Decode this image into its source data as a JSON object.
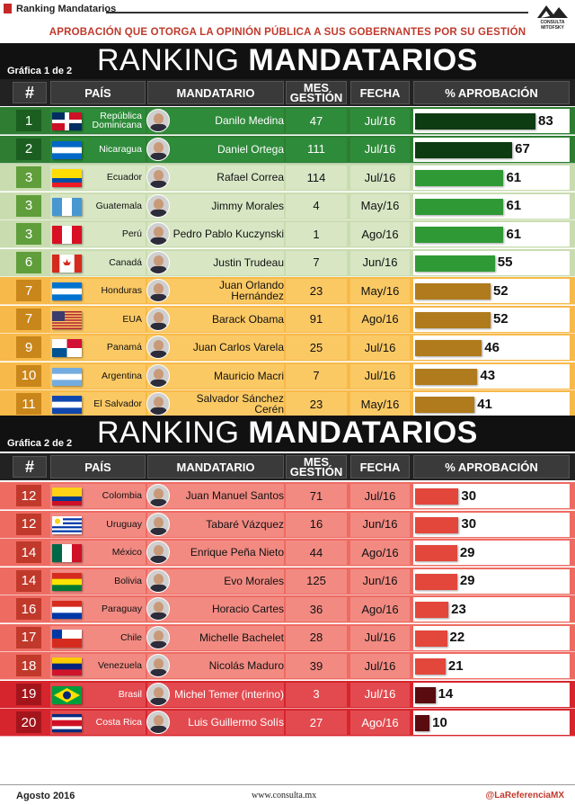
{
  "header": {
    "doc_title": "Ranking Mandatarios",
    "subtitle": "APROBACIÓN QUE OTORGA LA OPINIÓN PÚBLICA A SUS GOBERNANTES POR SU GESTIÓN",
    "logo_text": "CONSULTA MITOFSKY"
  },
  "columns": {
    "rank": "#",
    "country": "PAÍS",
    "leader": "MANDATARIO",
    "months": "MES GESTIÓN",
    "date": "FECHA",
    "approval": "% APROBACIÓN"
  },
  "sections": [
    {
      "label": "Gráfica 1 de 2",
      "title_light": "RANKING",
      "title_bold": "MANDATARIOS",
      "rows": [
        {
          "rank": "1",
          "country": "República Dominicana",
          "leader": "Danilo Medina",
          "months": "47",
          "date": "Jul/16",
          "value": 83,
          "flag": "dominican-republic-flag-icon",
          "tier": "green-dark"
        },
        {
          "rank": "2",
          "country": "Nicaragua",
          "leader": "Daniel Ortega",
          "months": "111",
          "date": "Jul/16",
          "value": 67,
          "flag": "nicaragua-flag-icon",
          "tier": "green-dark"
        },
        {
          "rank": "3",
          "country": "Ecuador",
          "leader": "Rafael Correa",
          "months": "114",
          "date": "Jul/16",
          "value": 61,
          "flag": "ecuador-flag-icon",
          "tier": "green"
        },
        {
          "rank": "3",
          "country": "Guatemala",
          "leader": "Jimmy Morales",
          "months": "4",
          "date": "May/16",
          "value": 61,
          "flag": "guatemala-flag-icon",
          "tier": "green"
        },
        {
          "rank": "3",
          "country": "Perú",
          "leader": "Pedro Pablo Kuczynski",
          "months": "1",
          "date": "Ago/16",
          "value": 61,
          "flag": "peru-flag-icon",
          "tier": "green"
        },
        {
          "rank": "6",
          "country": "Canadá",
          "leader": "Justin Trudeau",
          "months": "7",
          "date": "Jun/16",
          "value": 55,
          "flag": "canada-flag-icon",
          "tier": "green"
        },
        {
          "rank": "7",
          "country": "Honduras",
          "leader": "Juan Orlando Hernández",
          "months": "23",
          "date": "May/16",
          "value": 52,
          "flag": "honduras-flag-icon",
          "tier": "orange"
        },
        {
          "rank": "7",
          "country": "EUA",
          "leader": "Barack Obama",
          "months": "91",
          "date": "Ago/16",
          "value": 52,
          "flag": "usa-flag-icon",
          "tier": "orange"
        },
        {
          "rank": "9",
          "country": "Panamá",
          "leader": "Juan Carlos Varela",
          "months": "25",
          "date": "Jul/16",
          "value": 46,
          "flag": "panama-flag-icon",
          "tier": "orange"
        },
        {
          "rank": "10",
          "country": "Argentina",
          "leader": "Mauricio Macri",
          "months": "7",
          "date": "Jul/16",
          "value": 43,
          "flag": "argentina-flag-icon",
          "tier": "orange"
        },
        {
          "rank": "11",
          "country": "El Salvador",
          "leader": "Salvador Sánchez Cerén",
          "months": "23",
          "date": "May/16",
          "value": 41,
          "flag": "el-salvador-flag-icon",
          "tier": "orange"
        }
      ]
    },
    {
      "label": "Gráfica 2 de 2",
      "title_light": "RANKING",
      "title_bold": "MANDATARIOS",
      "rows": [
        {
          "rank": "12",
          "country": "Colombia",
          "leader": "Juan Manuel Santos",
          "months": "71",
          "date": "Jul/16",
          "value": 30,
          "flag": "colombia-flag-icon",
          "tier": "red-light"
        },
        {
          "rank": "12",
          "country": "Uruguay",
          "leader": "Tabaré Vázquez",
          "months": "16",
          "date": "Jun/16",
          "value": 30,
          "flag": "uruguay-flag-icon",
          "tier": "red-light"
        },
        {
          "rank": "14",
          "country": "México",
          "leader": "Enrique Peña Nieto",
          "months": "44",
          "date": "Ago/16",
          "value": 29,
          "flag": "mexico-flag-icon",
          "tier": "red-light"
        },
        {
          "rank": "14",
          "country": "Bolivia",
          "leader": "Evo Morales",
          "months": "125",
          "date": "Jun/16",
          "value": 29,
          "flag": "bolivia-flag-icon",
          "tier": "red-light"
        },
        {
          "rank": "16",
          "country": "Paraguay",
          "leader": "Horacio Cartes",
          "months": "36",
          "date": "Ago/16",
          "value": 23,
          "flag": "paraguay-flag-icon",
          "tier": "red-light"
        },
        {
          "rank": "17",
          "country": "Chile",
          "leader": "Michelle Bachelet",
          "months": "28",
          "date": "Jul/16",
          "value": 22,
          "flag": "chile-flag-icon",
          "tier": "red-light"
        },
        {
          "rank": "18",
          "country": "Venezuela",
          "leader": "Nicolás Maduro",
          "months": "39",
          "date": "Jul/16",
          "value": 21,
          "flag": "venezuela-flag-icon",
          "tier": "red-light"
        },
        {
          "rank": "19",
          "country": "Brasil",
          "leader": "Michel Temer (interino)",
          "months": "3",
          "date": "Jul/16",
          "value": 14,
          "flag": "brazil-flag-icon",
          "tier": "red-dark"
        },
        {
          "rank": "20",
          "country": "Costa Rica",
          "leader": "Luis Guillermo Solís",
          "months": "27",
          "date": "Ago/16",
          "value": 10,
          "flag": "costa-rica-flag-icon",
          "tier": "red-dark"
        }
      ]
    }
  ],
  "colors": {
    "green-dark": {
      "row": "#2e7d32",
      "rank": "#1b5e20",
      "cell": "#2e8b3a",
      "bar": "#0d3b12",
      "text": "#ffffff"
    },
    "green": {
      "row": "#c9dcb0",
      "rank": "#5f9e3a",
      "cell": "#d8e6c4",
      "bar": "#2f9a35",
      "text": "#111111"
    },
    "orange": {
      "row": "#f7b949",
      "rank": "#c9861a",
      "cell": "#fbc964",
      "bar": "#b07b1c",
      "text": "#111111"
    },
    "red-light": {
      "row": "#ee6b62",
      "rank": "#c0392b",
      "cell": "#f28a82",
      "bar": "#e3473c",
      "text": "#111111"
    },
    "red-dark": {
      "row": "#d6252d",
      "rank": "#a3151b",
      "cell": "#e24a4f",
      "bar": "#5a0b10",
      "text": "#ffffff"
    }
  },
  "chart_data": {
    "type": "bar",
    "title": "RANKING MANDATARIOS",
    "xlabel": "",
    "ylabel": "% APROBACIÓN",
    "orientation": "horizontal",
    "categories": [
      "República Dominicana",
      "Nicaragua",
      "Ecuador",
      "Guatemala",
      "Perú",
      "Canadá",
      "Honduras",
      "EUA",
      "Panamá",
      "Argentina",
      "El Salvador",
      "Colombia",
      "Uruguay",
      "México",
      "Bolivia",
      "Paraguay",
      "Chile",
      "Venezuela",
      "Brasil",
      "Costa Rica"
    ],
    "values": [
      83,
      67,
      61,
      61,
      61,
      55,
      52,
      52,
      46,
      43,
      41,
      30,
      30,
      29,
      29,
      23,
      22,
      21,
      14,
      10
    ],
    "xlim": [
      0,
      100
    ]
  },
  "footer": {
    "date": "Agosto 2016",
    "site": "www.consulta.mx",
    "handle": "@LaReferenciaMX"
  }
}
